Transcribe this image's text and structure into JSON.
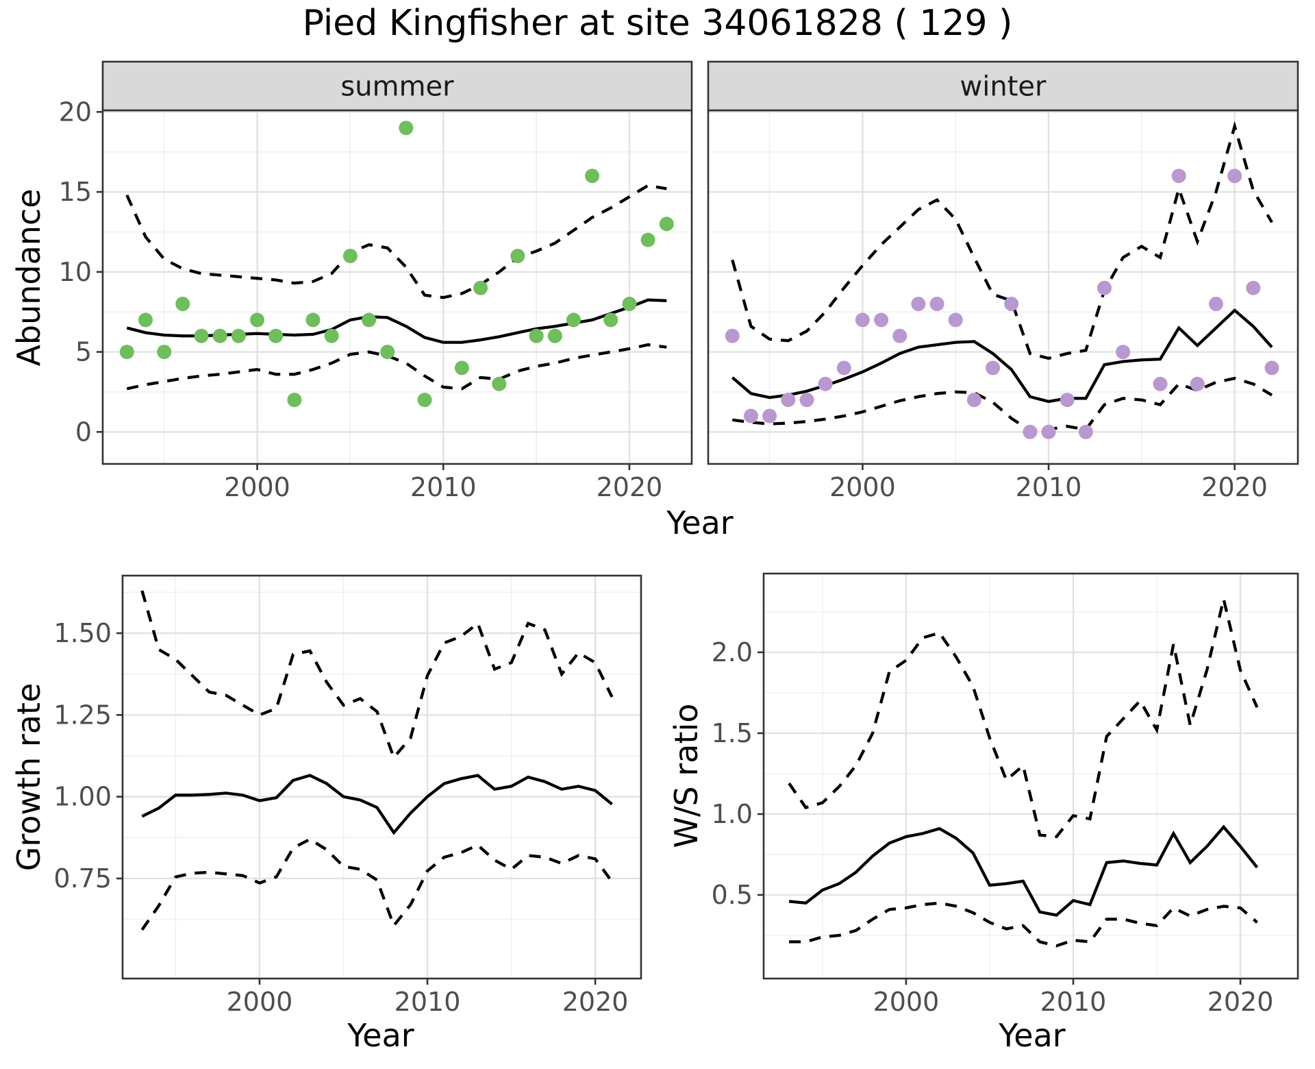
{
  "title": "Pied Kingfisher at site 34061828 ( 129 )",
  "labels": {
    "abundance": "Abundance",
    "growth_rate": "Growth rate",
    "ws_ratio": "W/S ratio",
    "year": "Year"
  },
  "colors": {
    "summer_point": "#6EBE5C",
    "winter_point": "#B998D0",
    "line": "#000000",
    "panel_border": "#333333",
    "strip_bg": "#D9D9D9",
    "grid_major": "#E2E2E2",
    "grid_minor": "#F0F0F0",
    "tick_text": "#4D4D4D",
    "strip_text": "#1A1A1A"
  },
  "chart_data": [
    {
      "id": "abundance-summer",
      "type": "scatter",
      "facet": "summer",
      "title": "summer",
      "xlabel": "Year",
      "ylabel": "Abundance",
      "xlim": [
        1991.7,
        2023.35
      ],
      "ylim": [
        -2.0,
        20.1
      ],
      "xticks": [
        2000,
        2010,
        2020
      ],
      "xtick_labels": [
        "2000",
        "2010",
        "2020"
      ],
      "xminor": [
        1995,
        2005,
        2015
      ],
      "yticks": [
        0,
        5,
        10,
        15,
        20
      ],
      "ytick_labels": [
        "0",
        "5",
        "10",
        "15",
        "20"
      ],
      "yminor": [
        2.5,
        7.5,
        12.5,
        17.5
      ],
      "show_ytick_labels": true,
      "point_color": "#6EBE5C",
      "points": [
        [
          1993,
          5
        ],
        [
          1994,
          7
        ],
        [
          1995,
          5
        ],
        [
          1996,
          8
        ],
        [
          1997,
          6
        ],
        [
          1998,
          6
        ],
        [
          1999,
          6
        ],
        [
          2000,
          7
        ],
        [
          2001,
          6
        ],
        [
          2002,
          2
        ],
        [
          2003,
          7
        ],
        [
          2004,
          6
        ],
        [
          2005,
          11
        ],
        [
          2006,
          7
        ],
        [
          2007,
          5
        ],
        [
          2008,
          19
        ],
        [
          2009,
          2
        ],
        [
          2011,
          4
        ],
        [
          2012,
          9
        ],
        [
          2013,
          3
        ],
        [
          2014,
          11
        ],
        [
          2015,
          6
        ],
        [
          2016,
          6
        ],
        [
          2017,
          7
        ],
        [
          2018,
          16
        ],
        [
          2019,
          7
        ],
        [
          2020,
          8
        ],
        [
          2021,
          12
        ],
        [
          2022,
          13
        ]
      ],
      "line_years": [
        1993,
        1994,
        1995,
        1996,
        1997,
        1998,
        1999,
        2000,
        2001,
        2002,
        2003,
        2004,
        2005,
        2006,
        2007,
        2008,
        2009,
        2010,
        2011,
        2012,
        2013,
        2014,
        2015,
        2016,
        2017,
        2018,
        2019,
        2020,
        2021,
        2022
      ],
      "series": [
        {
          "name": "fit",
          "style": "solid",
          "values": [
            6.5,
            6.2,
            6.05,
            6.0,
            6.0,
            6.05,
            6.1,
            6.15,
            6.1,
            6.05,
            6.1,
            6.4,
            7.0,
            7.2,
            7.15,
            6.6,
            5.9,
            5.6,
            5.6,
            5.75,
            5.95,
            6.2,
            6.45,
            6.6,
            6.8,
            7.0,
            7.4,
            7.8,
            8.25,
            8.2
          ]
        },
        {
          "name": "upper_ci",
          "style": "dashed",
          "values": [
            14.8,
            12.2,
            10.8,
            10.2,
            9.9,
            9.8,
            9.7,
            9.6,
            9.5,
            9.3,
            9.4,
            9.9,
            11.2,
            11.7,
            11.5,
            10.3,
            8.55,
            8.4,
            8.65,
            9.2,
            10.0,
            10.9,
            11.3,
            11.8,
            12.6,
            13.4,
            14.0,
            14.7,
            15.4,
            15.2
          ]
        },
        {
          "name": "lower_ci",
          "style": "dashed",
          "values": [
            2.7,
            2.95,
            3.15,
            3.35,
            3.5,
            3.6,
            3.75,
            3.9,
            3.6,
            3.6,
            3.9,
            4.3,
            4.85,
            5.0,
            4.75,
            4.3,
            3.5,
            2.8,
            2.7,
            3.4,
            3.3,
            3.8,
            4.1,
            4.3,
            4.6,
            4.8,
            5.0,
            5.2,
            5.45,
            5.3
          ]
        }
      ]
    },
    {
      "id": "abundance-winter",
      "type": "scatter",
      "facet": "winter",
      "title": "winter",
      "xlabel": "Year",
      "ylabel": "Abundance",
      "xlim": [
        1991.7,
        2023.4
      ],
      "ylim": [
        -2.0,
        20.1
      ],
      "xticks": [
        2000,
        2010,
        2020
      ],
      "xtick_labels": [
        "2000",
        "2010",
        "2020"
      ],
      "xminor": [
        1995,
        2005,
        2015
      ],
      "yticks": [
        0,
        5,
        10,
        15,
        20
      ],
      "ytick_labels": [
        "0",
        "5",
        "10",
        "15",
        "20"
      ],
      "yminor": [
        2.5,
        7.5,
        12.5,
        17.5
      ],
      "show_ytick_labels": false,
      "point_color": "#B998D0",
      "points": [
        [
          1993,
          6
        ],
        [
          1994,
          1
        ],
        [
          1995,
          1
        ],
        [
          1996,
          2
        ],
        [
          1997,
          2
        ],
        [
          1998,
          3
        ],
        [
          1999,
          4
        ],
        [
          2000,
          7
        ],
        [
          2001,
          7
        ],
        [
          2002,
          6
        ],
        [
          2003,
          8
        ],
        [
          2004,
          8
        ],
        [
          2005,
          7
        ],
        [
          2006,
          2
        ],
        [
          2007,
          4
        ],
        [
          2008,
          8
        ],
        [
          2009,
          0
        ],
        [
          2010,
          0
        ],
        [
          2011,
          2
        ],
        [
          2012,
          0
        ],
        [
          2013,
          9
        ],
        [
          2014,
          5
        ],
        [
          2016,
          3
        ],
        [
          2017,
          16
        ],
        [
          2018,
          3
        ],
        [
          2019,
          8
        ],
        [
          2020,
          16
        ],
        [
          2021,
          9
        ],
        [
          2022,
          4
        ]
      ],
      "line_years": [
        1993,
        1994,
        1995,
        1996,
        1997,
        1998,
        1999,
        2000,
        2001,
        2002,
        2003,
        2004,
        2005,
        2006,
        2007,
        2008,
        2009,
        2010,
        2011,
        2012,
        2013,
        2014,
        2015,
        2016,
        2017,
        2018,
        2019,
        2020,
        2021,
        2022
      ],
      "series": [
        {
          "name": "fit",
          "style": "solid",
          "values": [
            3.4,
            2.4,
            2.15,
            2.3,
            2.55,
            2.9,
            3.3,
            3.75,
            4.3,
            4.9,
            5.3,
            5.45,
            5.6,
            5.65,
            4.9,
            3.9,
            2.2,
            1.9,
            2.1,
            2.1,
            4.2,
            4.4,
            4.5,
            4.55,
            6.5,
            5.4,
            6.5,
            7.6,
            6.6,
            5.3
          ]
        },
        {
          "name": "upper_ci",
          "style": "dashed",
          "values": [
            10.75,
            6.6,
            5.8,
            5.7,
            6.3,
            7.5,
            9.0,
            10.4,
            11.7,
            12.8,
            13.9,
            14.5,
            13.3,
            10.9,
            8.6,
            8.2,
            4.9,
            4.6,
            4.9,
            5.1,
            8.85,
            10.9,
            11.6,
            10.9,
            15.2,
            11.9,
            15.0,
            19.1,
            15.1,
            13.1
          ]
        },
        {
          "name": "lower_ci",
          "style": "dashed",
          "values": [
            0.75,
            0.6,
            0.5,
            0.55,
            0.65,
            0.8,
            1.0,
            1.25,
            1.6,
            1.95,
            2.2,
            2.4,
            2.5,
            2.45,
            1.85,
            0.85,
            0.1,
            0.15,
            0.35,
            0.15,
            1.7,
            2.1,
            2.0,
            1.7,
            3.0,
            2.6,
            3.1,
            3.35,
            3.0,
            2.3
          ]
        }
      ]
    },
    {
      "id": "growth-rate",
      "type": "line",
      "facet": null,
      "title": "",
      "xlabel": "Year",
      "ylabel": "Growth rate",
      "xlim": [
        1991.84,
        2022.73
      ],
      "ylim": [
        0.444,
        1.676
      ],
      "xticks": [
        2000,
        2010,
        2020
      ],
      "xtick_labels": [
        "2000",
        "2010",
        "2020"
      ],
      "xminor": [
        1995,
        2005,
        2015
      ],
      "yticks": [
        0.75,
        1.0,
        1.25,
        1.5
      ],
      "ytick_labels": [
        "0.75",
        "1.00",
        "1.25",
        "1.50"
      ],
      "yminor": [
        0.625,
        0.875,
        1.125,
        1.375,
        1.625
      ],
      "show_ytick_labels": true,
      "point_color": null,
      "points": [],
      "line_years": [
        1993,
        1994,
        1995,
        1996,
        1997,
        1998,
        1999,
        2000,
        2001,
        2002,
        2003,
        2004,
        2005,
        2006,
        2007,
        2008,
        2009,
        2010,
        2011,
        2012,
        2013,
        2014,
        2015,
        2016,
        2017,
        2018,
        2019,
        2020,
        2021
      ],
      "series": [
        {
          "name": "fit",
          "style": "solid",
          "values": [
            0.94,
            0.965,
            1.005,
            1.005,
            1.007,
            1.011,
            1.005,
            0.988,
            0.997,
            1.05,
            1.065,
            1.04,
            1.0,
            0.99,
            0.967,
            0.89,
            0.95,
            1.0,
            1.04,
            1.055,
            1.065,
            1.023,
            1.032,
            1.06,
            1.046,
            1.023,
            1.032,
            1.019,
            0.977
          ]
        },
        {
          "name": "upper_ci",
          "style": "dashed",
          "values": [
            1.63,
            1.45,
            1.42,
            1.37,
            1.32,
            1.31,
            1.28,
            1.25,
            1.27,
            1.435,
            1.446,
            1.35,
            1.28,
            1.3,
            1.26,
            1.12,
            1.18,
            1.37,
            1.47,
            1.49,
            1.53,
            1.39,
            1.41,
            1.53,
            1.51,
            1.375,
            1.44,
            1.41,
            1.305
          ]
        },
        {
          "name": "lower_ci",
          "style": "dashed",
          "values": [
            0.593,
            0.667,
            0.755,
            0.766,
            0.769,
            0.764,
            0.759,
            0.736,
            0.755,
            0.843,
            0.87,
            0.838,
            0.787,
            0.778,
            0.745,
            0.606,
            0.67,
            0.773,
            0.815,
            0.829,
            0.852,
            0.806,
            0.778,
            0.82,
            0.815,
            0.796,
            0.82,
            0.81,
            0.74
          ]
        }
      ]
    },
    {
      "id": "ws-ratio",
      "type": "line",
      "facet": null,
      "title": "",
      "xlabel": "Year",
      "ylabel": "W/S ratio",
      "xlim": [
        1991.48,
        2023.44
      ],
      "ylim": [
        -0.017,
        2.487
      ],
      "xticks": [
        2000,
        2010,
        2020
      ],
      "xtick_labels": [
        "2000",
        "2010",
        "2020"
      ],
      "xminor": [
        1995,
        2005,
        2015
      ],
      "yticks": [
        0.5,
        1.0,
        1.5,
        2.0
      ],
      "ytick_labels": [
        "0.5",
        "1.0",
        "1.5",
        "2.0"
      ],
      "yminor": [
        0.25,
        0.75,
        1.25,
        1.75,
        2.25
      ],
      "show_ytick_labels": true,
      "point_color": null,
      "points": [],
      "line_years": [
        1993,
        1994,
        1995,
        1996,
        1997,
        1998,
        1999,
        2000,
        2001,
        2002,
        2003,
        2004,
        2005,
        2006,
        2007,
        2008,
        2009,
        2010,
        2011,
        2012,
        2013,
        2014,
        2015,
        2016,
        2017,
        2018,
        2019,
        2020,
        2021
      ],
      "series": [
        {
          "name": "fit",
          "style": "solid",
          "values": [
            0.46,
            0.45,
            0.53,
            0.57,
            0.64,
            0.74,
            0.82,
            0.86,
            0.88,
            0.91,
            0.85,
            0.76,
            0.56,
            0.57,
            0.585,
            0.395,
            0.375,
            0.465,
            0.44,
            0.7,
            0.71,
            0.695,
            0.685,
            0.88,
            0.7,
            0.8,
            0.92,
            0.8,
            0.67
          ]
        },
        {
          "name": "upper_ci",
          "style": "dashed",
          "values": [
            1.19,
            1.04,
            1.07,
            1.17,
            1.3,
            1.5,
            1.88,
            1.95,
            2.09,
            2.12,
            1.97,
            1.79,
            1.47,
            1.21,
            1.3,
            0.87,
            0.86,
            0.99,
            0.97,
            1.48,
            1.59,
            1.7,
            1.52,
            2.05,
            1.55,
            1.89,
            2.33,
            1.89,
            1.66
          ]
        },
        {
          "name": "lower_ci",
          "style": "dashed",
          "values": [
            0.21,
            0.21,
            0.24,
            0.25,
            0.28,
            0.35,
            0.41,
            0.42,
            0.44,
            0.45,
            0.43,
            0.39,
            0.33,
            0.29,
            0.31,
            0.21,
            0.185,
            0.22,
            0.21,
            0.35,
            0.35,
            0.325,
            0.31,
            0.42,
            0.37,
            0.41,
            0.43,
            0.42,
            0.33
          ]
        }
      ]
    }
  ]
}
